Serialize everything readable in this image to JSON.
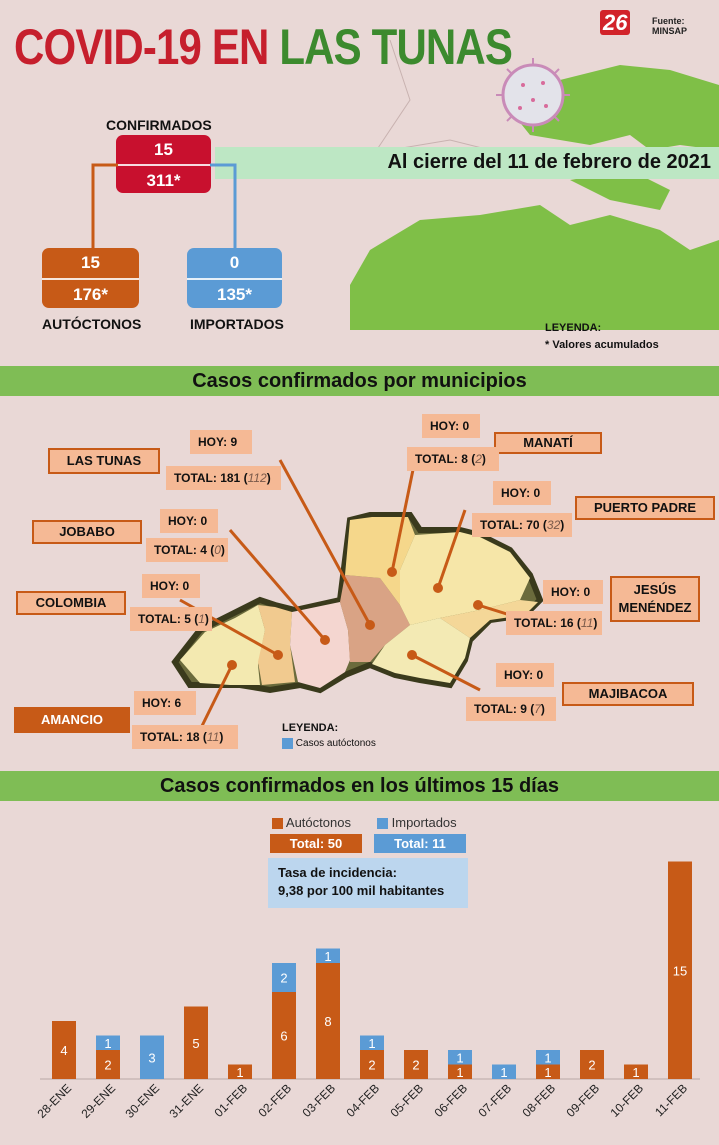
{
  "header": {
    "title_part1": "COVID-19 EN ",
    "title_part2": "LAS TUNAS",
    "logo": "26",
    "source": "Fuente: MINSAP"
  },
  "summary": {
    "confirmados": {
      "label": "CONFIRMADOS",
      "today": "15",
      "total": "311*"
    },
    "autoctonos": {
      "label": "AUTÓCTONOS",
      "today": "15",
      "total": "176*"
    },
    "importados": {
      "label": "IMPORTADOS",
      "today": "0",
      "total": "135*"
    },
    "cierre": "Al cierre del 11 de febrero de 2021",
    "legend_title": "LEYENDA:",
    "legend_text": "* Valores acumulados"
  },
  "municipios": {
    "banner": "Casos confirmados por municipios",
    "legend_title": "LEYENDA:",
    "legend_text": "Casos autóctonos",
    "items": [
      {
        "name": "LAS TUNAS",
        "hoy": "HOY: 9",
        "total": "TOTAL: 181 (",
        "auto": "112",
        "close": ")"
      },
      {
        "name": "MANATÍ",
        "hoy": "HOY: 0",
        "total": "TOTAL: 8 (",
        "auto": "2",
        "close": ")"
      },
      {
        "name": "PUERTO PADRE",
        "hoy": "HOY: 0",
        "total": "TOTAL: 70 (",
        "auto": "32",
        "close": ")"
      },
      {
        "name": "JOBABO",
        "hoy": "HOY: 0",
        "total": "TOTAL: 4 (",
        "auto": "0",
        "close": ")"
      },
      {
        "name": "COLOMBIA",
        "hoy": "HOY: 0",
        "total": "TOTAL: 5 (",
        "auto": "1",
        "close": ")"
      },
      {
        "name": "JESÚS MENÉNDEZ",
        "hoy": "HOY: 0",
        "total": "TOTAL: 16 (",
        "auto": "11",
        "close": ")"
      },
      {
        "name": "MAJIBACOA",
        "hoy": "HOY: 0",
        "total": "TOTAL: 9 (",
        "auto": "7",
        "close": ")"
      },
      {
        "name": "AMANCIO",
        "hoy": "HOY: 6",
        "total": "TOTAL: 18 (",
        "auto": "11",
        "close": ")"
      }
    ]
  },
  "chart_section": {
    "banner": "Casos confirmados en los últimos 15 días",
    "legend_autoctonos": "Autóctonos",
    "legend_importados": "Importados",
    "total_autoctonos": "Total: 50",
    "total_importados": "Total: 11",
    "tasa_line1": "Tasa de incidencia:",
    "tasa_line2": "9,38 por 100 mil habitantes"
  },
  "colors": {
    "autoctonos": "#c75a17",
    "importados": "#5b9bd5",
    "title_red": "#c61f2d",
    "title_green": "#3c8a2e",
    "banner_green": "#7fbd55"
  },
  "chart_data": {
    "type": "bar",
    "stacked": true,
    "categories": [
      "28-ENE",
      "29-ENE",
      "30-ENE",
      "31-ENE",
      "01-FEB",
      "02-FEB",
      "03-FEB",
      "04-FEB",
      "05-FEB",
      "06-FEB",
      "07-FEB",
      "08-FEB",
      "09-FEB",
      "10-FEB",
      "11-FEB"
    ],
    "series": [
      {
        "name": "Autóctonos",
        "values": [
          4,
          2,
          0,
          5,
          1,
          6,
          8,
          2,
          2,
          1,
          0,
          1,
          2,
          1,
          15
        ]
      },
      {
        "name": "Importados",
        "values": [
          0,
          1,
          3,
          0,
          0,
          2,
          1,
          1,
          0,
          1,
          1,
          1,
          0,
          0,
          0
        ]
      }
    ],
    "ylim": [
      0,
      15
    ],
    "grid": false,
    "legend": "top-center"
  }
}
